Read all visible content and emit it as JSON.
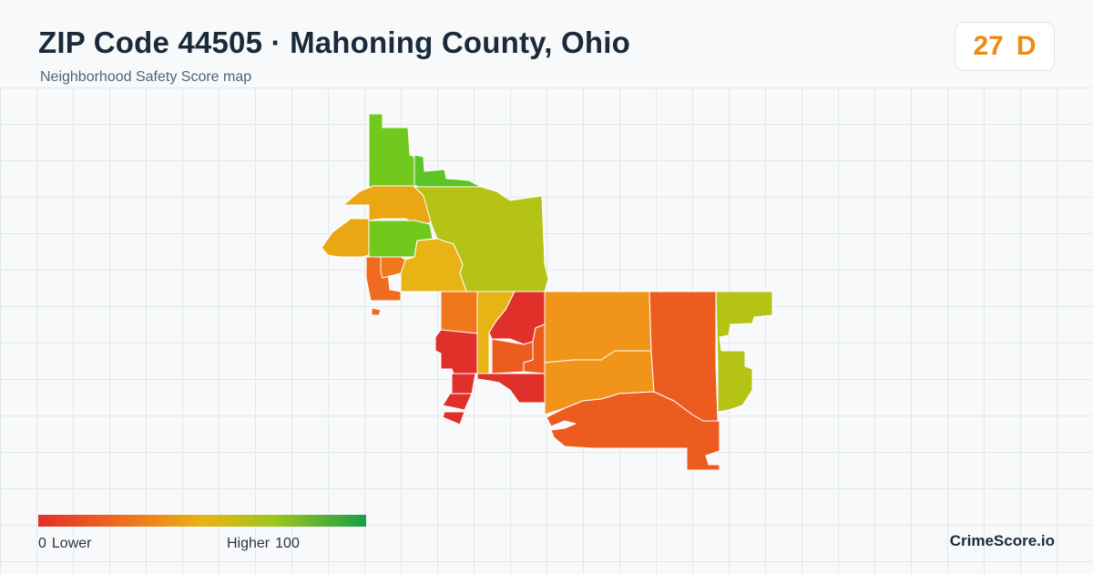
{
  "header": {
    "title": "ZIP Code 44505 · Mahoning County, Ohio",
    "subtitle": "Neighborhood Safety Score map"
  },
  "score": {
    "value": "27",
    "grade": "D",
    "color": "#ee8a12"
  },
  "legend": {
    "min_value": "0",
    "min_label": "Lower",
    "max_label": "Higher",
    "max_value": "100",
    "colors": [
      "#e0302a",
      "#ef6b1f",
      "#e8b315",
      "#9ec619",
      "#1a9e4a"
    ]
  },
  "footer": {
    "brand": "CrimeScore.io"
  },
  "map": {
    "regions": [
      {
        "name": "north-tract",
        "color": "#72c91e"
      },
      {
        "name": "north-east-sliver",
        "color": "#5cc427"
      },
      {
        "name": "north-west-tract",
        "color": "#e9a714"
      },
      {
        "name": "central-large-tract",
        "color": "#b5c216"
      },
      {
        "name": "west-tract",
        "color": "#e9a714"
      },
      {
        "name": "west-green-tract",
        "color": "#72c91e"
      },
      {
        "name": "central-orange-tract",
        "color": "#e8b315"
      },
      {
        "name": "west-small-tract-a",
        "color": "#ef6b1f"
      },
      {
        "name": "west-small-tract-b",
        "color": "#f0781c"
      },
      {
        "name": "middle-orange-tract",
        "color": "#f0781c"
      },
      {
        "name": "middle-yellow-tract",
        "color": "#e8b315"
      },
      {
        "name": "middle-red-tract",
        "color": "#e0302a"
      },
      {
        "name": "south-west-red-tract",
        "color": "#e0302a"
      },
      {
        "name": "south-west-strip-a",
        "color": "#e0302a"
      },
      {
        "name": "south-west-strip-b",
        "color": "#e0302a"
      },
      {
        "name": "middle-orange-small",
        "color": "#ec5c1f"
      },
      {
        "name": "south-middle-red",
        "color": "#e0302a"
      },
      {
        "name": "east-orange-large",
        "color": "#f1951a"
      },
      {
        "name": "east-orange-south",
        "color": "#f1951a"
      },
      {
        "name": "south-orange-band",
        "color": "#ec5c1f"
      },
      {
        "name": "east-red-orange-tract",
        "color": "#ec5c1f"
      },
      {
        "name": "far-east-tract",
        "color": "#b5c216"
      }
    ]
  }
}
